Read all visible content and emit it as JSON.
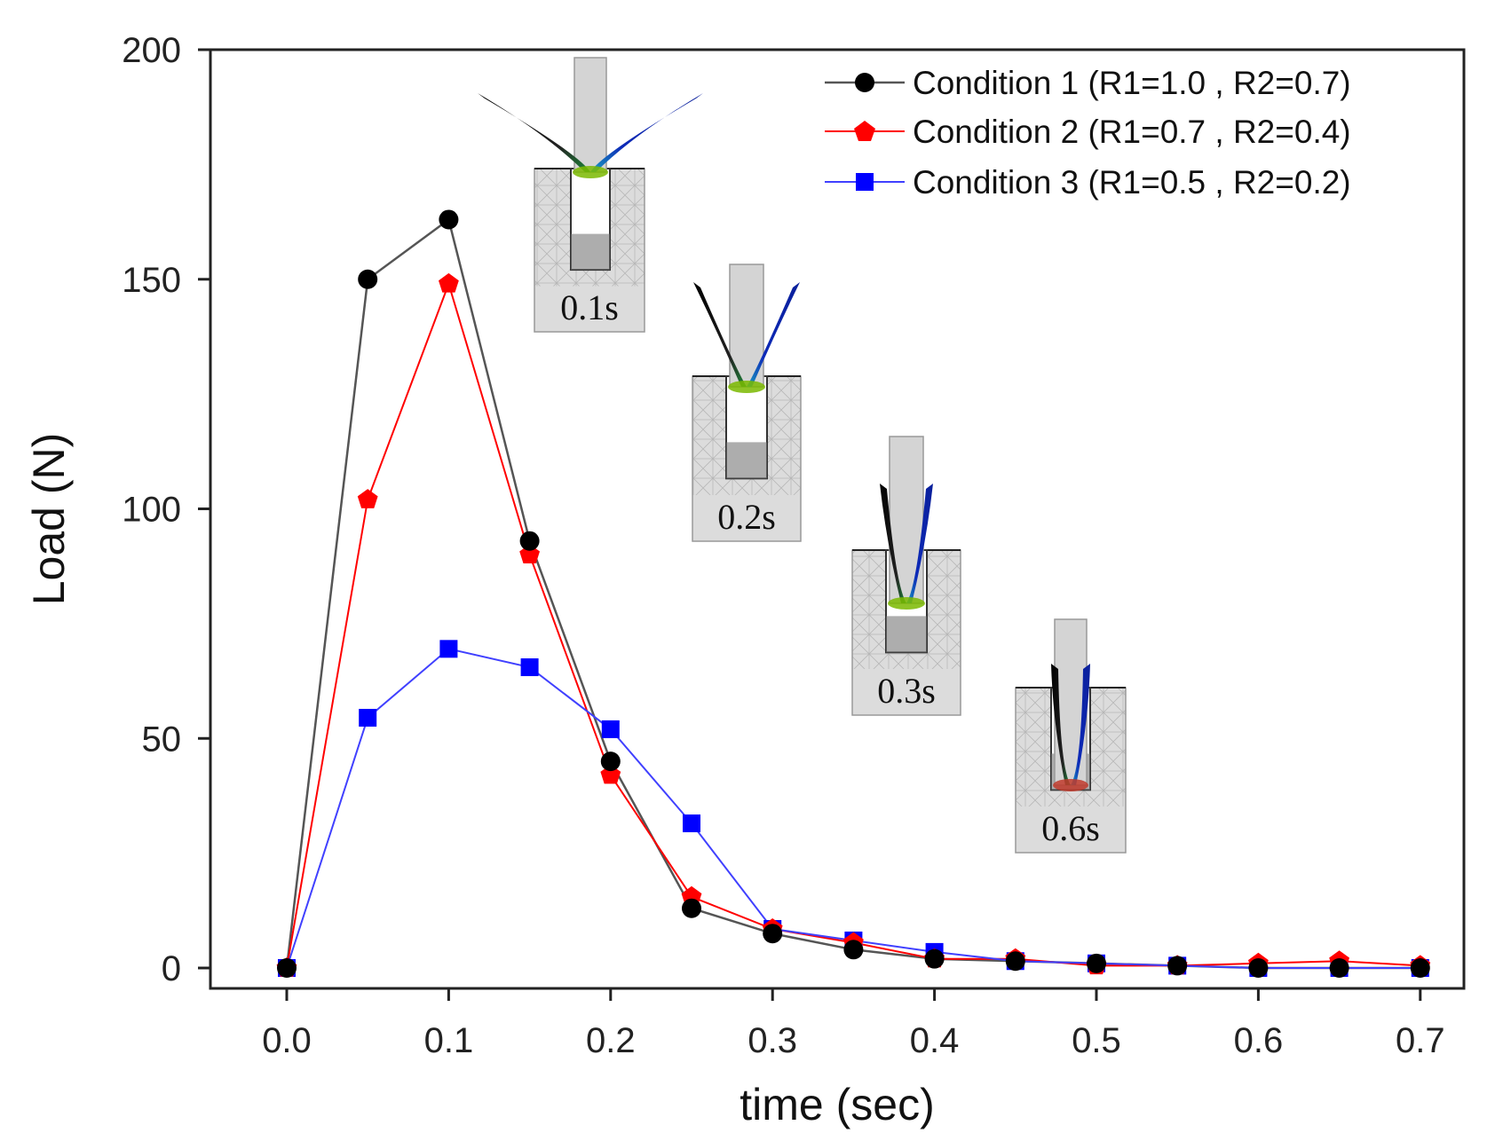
{
  "chart_data": {
    "type": "line",
    "xlabel": "time (sec)",
    "ylabel": "Load (N)",
    "xlim": [
      -0.05,
      0.725
    ],
    "ylim": [
      -5,
      200
    ],
    "xticks": [
      "0.0",
      "0.1",
      "0.2",
      "0.3",
      "0.4",
      "0.5",
      "0.6",
      "0.7"
    ],
    "yticks": [
      "0",
      "50",
      "100",
      "150",
      "200"
    ],
    "legend_position": "top-right",
    "x": [
      0.0,
      0.05,
      0.1,
      0.15,
      0.2,
      0.25,
      0.3,
      0.35,
      0.4,
      0.45,
      0.5,
      0.55,
      0.6,
      0.65,
      0.7
    ],
    "series": [
      {
        "name": "Condition 1 (R1=1.0 , R2=0.7)",
        "color": "#000000",
        "line_color": "#555555",
        "marker": "circle",
        "values": [
          0,
          150,
          163,
          93,
          45,
          13,
          7.5,
          4,
          2,
          1.5,
          1,
          0.5,
          0,
          0,
          0
        ]
      },
      {
        "name": "Condition 2 (R1=0.7 , R2=0.4)",
        "color": "#ff0000",
        "line_color": "#ff0000",
        "marker": "pentagon",
        "values": [
          0,
          102,
          149,
          90,
          42,
          15.5,
          8.5,
          5.5,
          2,
          2,
          0.5,
          0.5,
          1,
          1.5,
          0.5
        ]
      },
      {
        "name": "Condition 3 (R1=0.5 , R2=0.2)",
        "color": "#0000ff",
        "line_color": "#4040ff",
        "marker": "square",
        "values": [
          0,
          54.5,
          69.5,
          65.5,
          52,
          31.5,
          8.5,
          6,
          3.5,
          1.5,
          1,
          0.5,
          0,
          0,
          0
        ]
      }
    ],
    "annotations": [
      {
        "label": "0.1s",
        "x": 0.1
      },
      {
        "label": "0.2s",
        "x": 0.2
      },
      {
        "label": "0.3s",
        "x": 0.3
      },
      {
        "label": "0.6s",
        "x": 0.6
      }
    ]
  }
}
